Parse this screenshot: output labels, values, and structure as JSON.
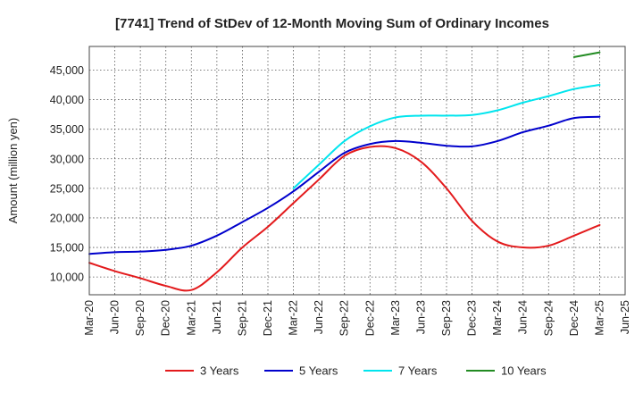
{
  "chart_data": {
    "type": "line",
    "title": "[7741]  Trend of StDev of 12-Month Moving Sum of Ordinary Incomes",
    "xlabel": "",
    "ylabel": "Amount (million yen)",
    "x_ticks": [
      "Mar-20",
      "Jun-20",
      "Sep-20",
      "Dec-20",
      "Mar-21",
      "Jun-21",
      "Sep-21",
      "Dec-21",
      "Mar-22",
      "Jun-22",
      "Sep-22",
      "Dec-22",
      "Mar-23",
      "Jun-23",
      "Sep-23",
      "Dec-23",
      "Mar-24",
      "Jun-24",
      "Sep-24",
      "Dec-24",
      "Mar-25",
      "Jun-25"
    ],
    "y_ticks": [
      10000,
      15000,
      20000,
      25000,
      30000,
      35000,
      40000,
      45000
    ],
    "y_tick_labels": [
      "10,000",
      "15,000",
      "20,000",
      "25,000",
      "30,000",
      "35,000",
      "40,000",
      "45,000"
    ],
    "ylim": [
      7000,
      49000
    ],
    "grid": true,
    "legend_position": "bottom",
    "series": [
      {
        "name": "3 Years",
        "color": "#e31a1c",
        "values": [
          12400,
          11000,
          9800,
          8500,
          7800,
          10800,
          15000,
          18500,
          22500,
          26500,
          30500,
          32000,
          31800,
          29500,
          25000,
          19500,
          16000,
          15000,
          15300,
          17000,
          18800
        ]
      },
      {
        "name": "5 Years",
        "color": "#0000cc",
        "values": [
          13900,
          14200,
          14300,
          14600,
          15300,
          17000,
          19300,
          21700,
          24500,
          27800,
          31000,
          32500,
          33000,
          32700,
          32200,
          32100,
          33000,
          34500,
          35600,
          36900,
          37100
        ]
      },
      {
        "name": "7 Years",
        "color": "#00e5ee",
        "values": [
          null,
          null,
          null,
          null,
          null,
          null,
          null,
          null,
          25000,
          29000,
          33000,
          35500,
          37000,
          37300,
          37300,
          37400,
          38200,
          39500,
          40600,
          41800,
          42500
        ]
      },
      {
        "name": "10 Years",
        "color": "#228b22",
        "values": [
          null,
          null,
          null,
          null,
          null,
          null,
          null,
          null,
          null,
          null,
          null,
          null,
          null,
          null,
          null,
          null,
          null,
          null,
          null,
          47200,
          48000
        ]
      }
    ]
  }
}
